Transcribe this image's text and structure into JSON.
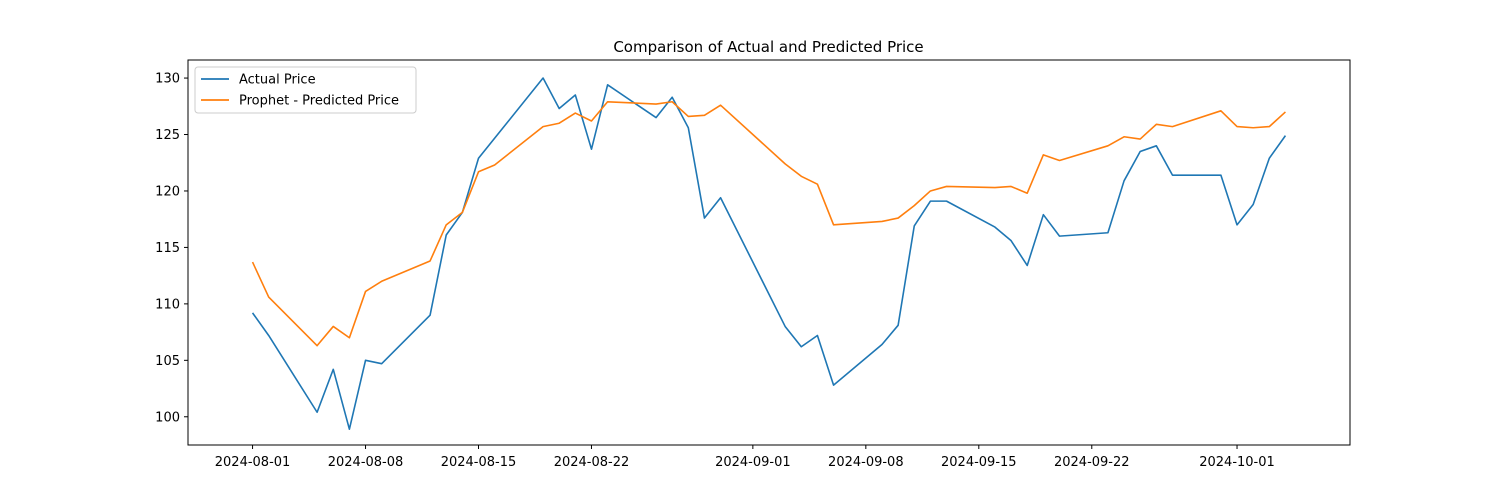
{
  "chart_data": {
    "type": "line",
    "title": "Comparison of Actual and Predicted Price",
    "xlabel": "",
    "ylabel": "",
    "x_range": [
      "2024-07-28",
      "2024-10-08"
    ],
    "y_range": [
      97.5,
      131.6
    ],
    "x_ticks": [
      "2024-08-01",
      "2024-08-08",
      "2024-08-15",
      "2024-08-22",
      "2024-09-01",
      "2024-09-08",
      "2024-09-15",
      "2024-09-22",
      "2024-10-01"
    ],
    "y_ticks": [
      100,
      105,
      110,
      115,
      120,
      125,
      130
    ],
    "grid": false,
    "legend_position": "top-left",
    "series": [
      {
        "name": "Actual Price",
        "color": "#1f77b4",
        "points": [
          [
            "2024-08-01",
            109.2
          ],
          [
            "2024-08-02",
            107.2
          ],
          [
            "2024-08-05",
            100.4
          ],
          [
            "2024-08-06",
            104.2
          ],
          [
            "2024-08-07",
            98.9
          ],
          [
            "2024-08-08",
            105.0
          ],
          [
            "2024-08-09",
            104.7
          ],
          [
            "2024-08-12",
            109.0
          ],
          [
            "2024-08-13",
            116.1
          ],
          [
            "2024-08-14",
            118.1
          ],
          [
            "2024-08-15",
            122.9
          ],
          [
            "2024-08-19",
            130.0
          ],
          [
            "2024-08-20",
            127.3
          ],
          [
            "2024-08-21",
            128.5
          ],
          [
            "2024-08-22",
            123.7
          ],
          [
            "2024-08-23",
            129.4
          ],
          [
            "2024-08-26",
            126.5
          ],
          [
            "2024-08-27",
            128.3
          ],
          [
            "2024-08-28",
            125.6
          ],
          [
            "2024-08-29",
            117.6
          ],
          [
            "2024-08-30",
            119.4
          ],
          [
            "2024-09-03",
            108.0
          ],
          [
            "2024-09-04",
            106.2
          ],
          [
            "2024-09-05",
            107.2
          ],
          [
            "2024-09-06",
            102.8
          ],
          [
            "2024-09-09",
            106.4
          ],
          [
            "2024-09-10",
            108.1
          ],
          [
            "2024-09-11",
            116.9
          ],
          [
            "2024-09-12",
            119.1
          ],
          [
            "2024-09-13",
            119.1
          ],
          [
            "2024-09-16",
            116.8
          ],
          [
            "2024-09-17",
            115.6
          ],
          [
            "2024-09-18",
            113.4
          ],
          [
            "2024-09-19",
            117.9
          ],
          [
            "2024-09-20",
            116.0
          ],
          [
            "2024-09-23",
            116.3
          ],
          [
            "2024-09-24",
            120.9
          ],
          [
            "2024-09-25",
            123.5
          ],
          [
            "2024-09-26",
            124.0
          ],
          [
            "2024-09-27",
            121.4
          ],
          [
            "2024-09-30",
            121.4
          ],
          [
            "2024-10-01",
            117.0
          ],
          [
            "2024-10-02",
            118.8
          ],
          [
            "2024-10-03",
            122.9
          ],
          [
            "2024-10-04",
            124.9
          ]
        ]
      },
      {
        "name": "Prophet - Predicted Price",
        "color": "#ff7f0e",
        "points": [
          [
            "2024-08-01",
            113.7
          ],
          [
            "2024-08-02",
            110.6
          ],
          [
            "2024-08-05",
            106.3
          ],
          [
            "2024-08-06",
            108.0
          ],
          [
            "2024-08-07",
            107.0
          ],
          [
            "2024-08-08",
            111.1
          ],
          [
            "2024-08-09",
            112.0
          ],
          [
            "2024-08-12",
            113.8
          ],
          [
            "2024-08-13",
            117.0
          ],
          [
            "2024-08-14",
            118.1
          ],
          [
            "2024-08-15",
            121.7
          ],
          [
            "2024-08-16",
            122.3
          ],
          [
            "2024-08-19",
            125.7
          ],
          [
            "2024-08-20",
            126.0
          ],
          [
            "2024-08-21",
            126.9
          ],
          [
            "2024-08-22",
            126.2
          ],
          [
            "2024-08-23",
            127.9
          ],
          [
            "2024-08-26",
            127.7
          ],
          [
            "2024-08-27",
            127.9
          ],
          [
            "2024-08-28",
            126.6
          ],
          [
            "2024-08-29",
            126.7
          ],
          [
            "2024-08-30",
            127.6
          ],
          [
            "2024-09-03",
            122.4
          ],
          [
            "2024-09-04",
            121.3
          ],
          [
            "2024-09-05",
            120.6
          ],
          [
            "2024-09-06",
            117.0
          ],
          [
            "2024-09-09",
            117.3
          ],
          [
            "2024-09-10",
            117.6
          ],
          [
            "2024-09-11",
            118.7
          ],
          [
            "2024-09-12",
            120.0
          ],
          [
            "2024-09-13",
            120.4
          ],
          [
            "2024-09-16",
            120.3
          ],
          [
            "2024-09-17",
            120.4
          ],
          [
            "2024-09-18",
            119.8
          ],
          [
            "2024-09-19",
            123.2
          ],
          [
            "2024-09-20",
            122.7
          ],
          [
            "2024-09-23",
            124.0
          ],
          [
            "2024-09-24",
            124.8
          ],
          [
            "2024-09-25",
            124.6
          ],
          [
            "2024-09-26",
            125.9
          ],
          [
            "2024-09-27",
            125.7
          ],
          [
            "2024-09-30",
            127.1
          ],
          [
            "2024-10-01",
            125.7
          ],
          [
            "2024-10-02",
            125.6
          ],
          [
            "2024-10-03",
            125.7
          ],
          [
            "2024-10-04",
            127.0
          ]
        ]
      }
    ]
  }
}
